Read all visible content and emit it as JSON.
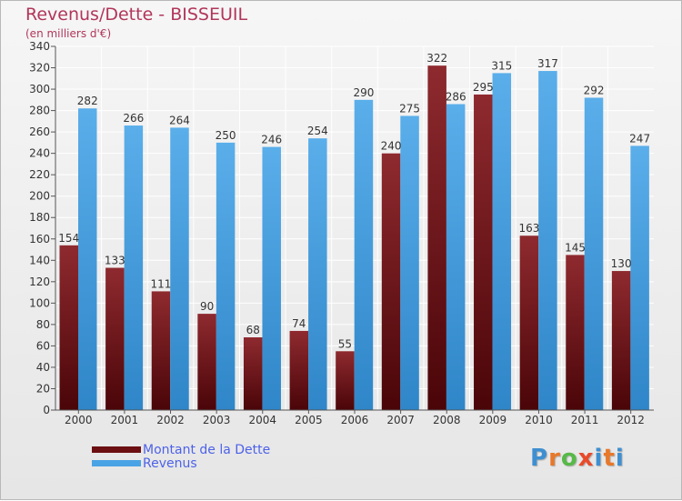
{
  "header": {
    "title": "Revenus/Dette - BISSEUIL",
    "subtitle": "(en milliers d'€)"
  },
  "colors": {
    "title": "#b1365a",
    "dette": "#7a1a1c",
    "revenus": "#4aa3e4",
    "legend_text": "#4d62e8",
    "grid": "#ffffff"
  },
  "legend": {
    "items": [
      {
        "label": "Montant de la Dette",
        "color": "#6b0f12"
      },
      {
        "label": "Revenus",
        "color": "#4aa3e4"
      }
    ]
  },
  "logo": {
    "text": "Proxiti",
    "letter_colors": [
      "#3e8fd1",
      "#e8782a",
      "#57b947",
      "#e84a2a",
      "#3e8fd1",
      "#e8782a",
      "#3e8fd1"
    ]
  },
  "chart_data": {
    "type": "bar",
    "categories": [
      "2000",
      "2001",
      "2002",
      "2003",
      "2004",
      "2005",
      "2006",
      "2007",
      "2008",
      "2009",
      "2010",
      "2011",
      "2012"
    ],
    "series": [
      {
        "name": "Montant de la Dette",
        "values": [
          154,
          133,
          111,
          90,
          68,
          74,
          55,
          240,
          322,
          295,
          163,
          145,
          130
        ]
      },
      {
        "name": "Revenus",
        "values": [
          282,
          266,
          264,
          250,
          246,
          254,
          290,
          275,
          286,
          315,
          317,
          292,
          247
        ]
      }
    ],
    "ylim": [
      0,
      340
    ],
    "ytick_step": 20,
    "grid": true,
    "legend_position": "bottom-left"
  }
}
